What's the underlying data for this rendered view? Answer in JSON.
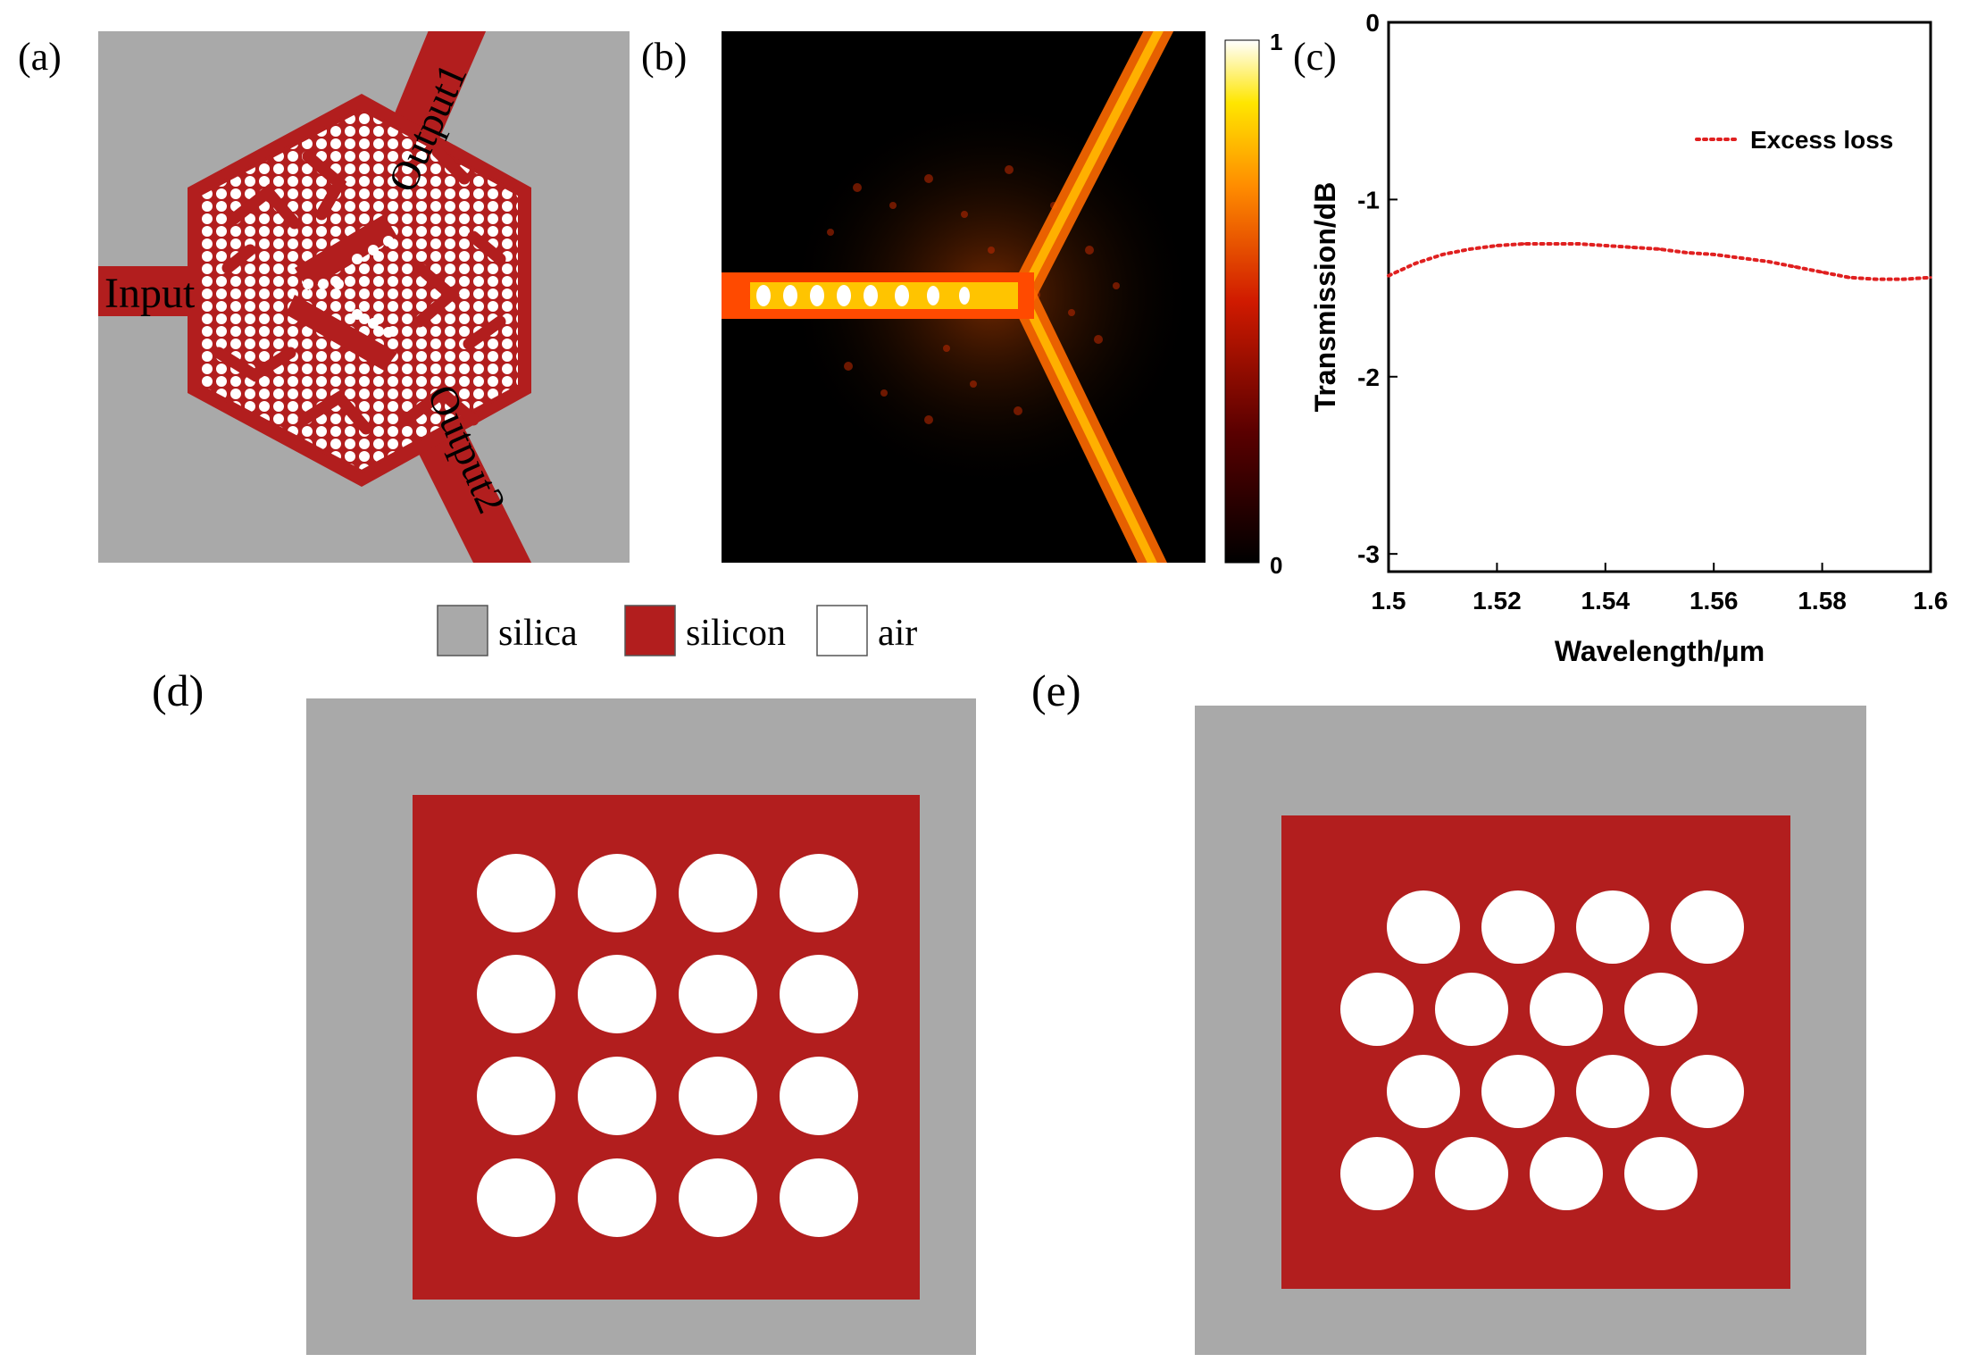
{
  "panels": {
    "a": {
      "label": "(a)",
      "port_input": "Input",
      "port_output1": "Output1",
      "port_output2": "Output2"
    },
    "b": {
      "label": "(b)",
      "colorbar_max": "1",
      "colorbar_min": "0"
    },
    "c": {
      "label": "(c)"
    },
    "d": {
      "label": "(d)",
      "hole_layout": "square lattice",
      "rows": 4,
      "cols": 4
    },
    "e": {
      "label": "(e)",
      "hole_layout": "staggered lattice",
      "rows": 4,
      "cols": 4
    }
  },
  "legend": {
    "items": [
      {
        "label": "silica",
        "color": "#a9a9a9"
      },
      {
        "label": "silicon",
        "color": "#b21e1e"
      },
      {
        "label": "air",
        "color": "#ffffff"
      }
    ]
  },
  "colors": {
    "silica": "#a9a9a9",
    "silicon": "#b21e1e",
    "air": "#ffffff",
    "curve": "#e02020"
  },
  "chart_data": {
    "type": "line",
    "xlabel": "Wavelength/μm",
    "ylabel": "Transmission/dB",
    "xlim": [
      1.5,
      1.6
    ],
    "ylim": [
      -3.1,
      0
    ],
    "xticks": [
      "1.5",
      "1.52",
      "1.54",
      "1.56",
      "1.58",
      "1.6"
    ],
    "yticks": [
      "0",
      "-1",
      "-2",
      "-3"
    ],
    "grid": false,
    "legend_position": "top-right",
    "series": [
      {
        "name": "Excess loss",
        "style": "dotted",
        "x": [
          1.5,
          1.505,
          1.51,
          1.515,
          1.52,
          1.525,
          1.53,
          1.535,
          1.54,
          1.545,
          1.55,
          1.555,
          1.56,
          1.565,
          1.57,
          1.575,
          1.58,
          1.585,
          1.59,
          1.595,
          1.6
        ],
        "y": [
          -1.43,
          -1.36,
          -1.31,
          -1.28,
          -1.26,
          -1.25,
          -1.25,
          -1.25,
          -1.26,
          -1.27,
          -1.28,
          -1.3,
          -1.31,
          -1.33,
          -1.35,
          -1.38,
          -1.41,
          -1.44,
          -1.45,
          -1.45,
          -1.44
        ]
      }
    ]
  }
}
